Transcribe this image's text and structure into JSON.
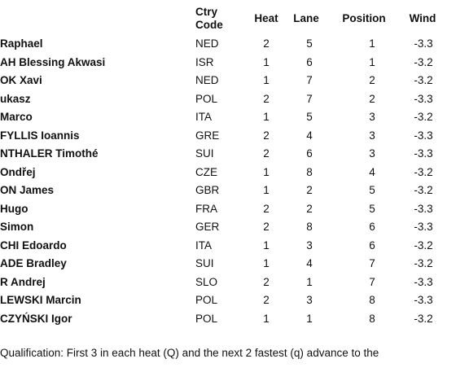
{
  "headers": {
    "ctry_line1": "Ctry",
    "ctry_line2": "Code",
    "heat": "Heat",
    "lane": "Lane",
    "position": "Position",
    "wind": "Wind"
  },
  "rows": [
    {
      "name": " Raphael",
      "ctry": "NED",
      "heat": "2",
      "lane": "5",
      "position": "1",
      "wind": "-3.3"
    },
    {
      "name": "AH Blessing Akwasi",
      "ctry": "ISR",
      "heat": "1",
      "lane": "6",
      "position": "1",
      "wind": "-3.2"
    },
    {
      "name": "OK Xavi",
      "ctry": "NED",
      "heat": "1",
      "lane": "7",
      "position": "2",
      "wind": "-3.2"
    },
    {
      "name": "ukasz",
      "ctry": "POL",
      "heat": "2",
      "lane": "7",
      "position": "2",
      "wind": "-3.3"
    },
    {
      "name": "Marco",
      "ctry": "ITA",
      "heat": "1",
      "lane": "5",
      "position": "3",
      "wind": "-3.2"
    },
    {
      "name": "FYLLIS Ioannis",
      "ctry": "GRE",
      "heat": "2",
      "lane": "4",
      "position": "3",
      "wind": "-3.3"
    },
    {
      "name": "NTHALER Timothé",
      "ctry": "SUI",
      "heat": "2",
      "lane": "6",
      "position": "3",
      "wind": "-3.3"
    },
    {
      "name": " Ondřej",
      "ctry": "CZE",
      "heat": "1",
      "lane": "8",
      "position": "4",
      "wind": "-3.2"
    },
    {
      "name": "ON James",
      "ctry": "GBR",
      "heat": "1",
      "lane": "2",
      "position": "5",
      "wind": "-3.2"
    },
    {
      "name": " Hugo",
      "ctry": "FRA",
      "heat": "2",
      "lane": "2",
      "position": "5",
      "wind": "-3.3"
    },
    {
      "name": " Simon",
      "ctry": "GER",
      "heat": "2",
      "lane": "8",
      "position": "6",
      "wind": "-3.3"
    },
    {
      "name": "CHI Edoardo",
      "ctry": "ITA",
      "heat": "1",
      "lane": "3",
      "position": "6",
      "wind": "-3.2"
    },
    {
      "name": "ADE Bradley",
      "ctry": "SUI",
      "heat": "1",
      "lane": "4",
      "position": "7",
      "wind": "-3.2"
    },
    {
      "name": "R Andrej",
      "ctry": "SLO",
      "heat": "2",
      "lane": "1",
      "position": "7",
      "wind": "-3.3"
    },
    {
      "name": "LEWSKI Marcin",
      "ctry": "POL",
      "heat": "2",
      "lane": "3",
      "position": "8",
      "wind": "-3.3"
    },
    {
      "name": "CZYŃSKI Igor",
      "ctry": "POL",
      "heat": "1",
      "lane": "1",
      "position": "8",
      "wind": "-3.2"
    }
  ],
  "note": " Qualification: First 3 in each heat (Q) and the next 2 fastest (q) advance to the"
}
